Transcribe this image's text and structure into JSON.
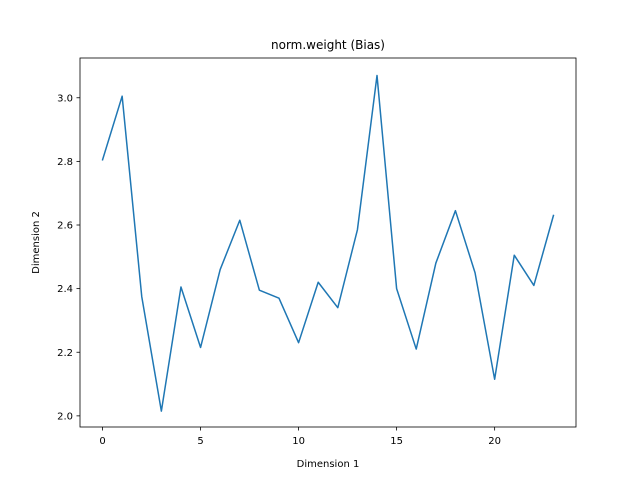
{
  "chart_data": {
    "type": "line",
    "title": "norm.weight (Bias)",
    "xlabel": "Dimension 1",
    "ylabel": "Dimension 2",
    "xlim": [
      -1.15,
      24.15
    ],
    "ylim": [
      1.965,
      3.125
    ],
    "xticks": [
      0,
      5,
      10,
      15,
      20
    ],
    "yticks": [
      2.0,
      2.2,
      2.4,
      2.6,
      2.8,
      3.0
    ],
    "grid": false,
    "legend": "none",
    "series": [
      {
        "color": "#1f77b4",
        "x": [
          0,
          1,
          2,
          3,
          4,
          5,
          6,
          7,
          8,
          9,
          10,
          11,
          12,
          13,
          14,
          15,
          16,
          17,
          18,
          19,
          20,
          21,
          22,
          23
        ],
        "y": [
          2.805,
          3.005,
          2.375,
          2.015,
          2.405,
          2.215,
          2.46,
          2.615,
          2.395,
          2.37,
          2.23,
          2.42,
          2.34,
          2.585,
          3.07,
          2.4,
          2.21,
          2.48,
          2.645,
          2.45,
          2.115,
          2.505,
          2.41,
          2.63
        ]
      }
    ]
  }
}
